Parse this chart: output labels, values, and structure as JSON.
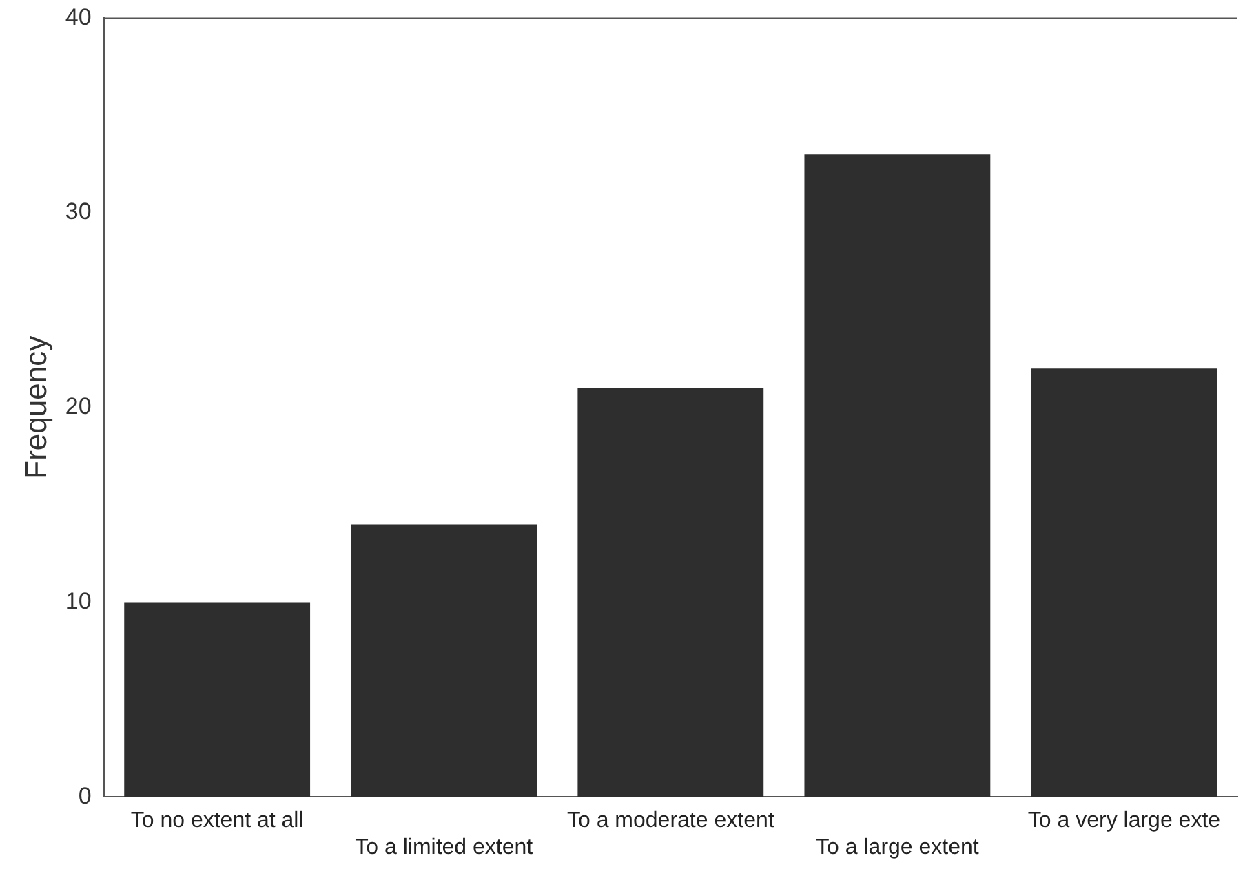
{
  "chart_data": {
    "type": "bar",
    "ylabel": "Frequency",
    "categories": [
      "To no extent at all",
      "To a limited extent",
      "To a moderate extent",
      "To a large extent",
      "To a very large exte"
    ],
    "values": [
      10,
      14,
      21,
      33,
      22
    ],
    "color": "#2e2e2e",
    "ylim": [
      0,
      40
    ],
    "yticks": [
      0,
      10,
      20,
      30,
      40
    ],
    "grid": false,
    "legend": false
  }
}
